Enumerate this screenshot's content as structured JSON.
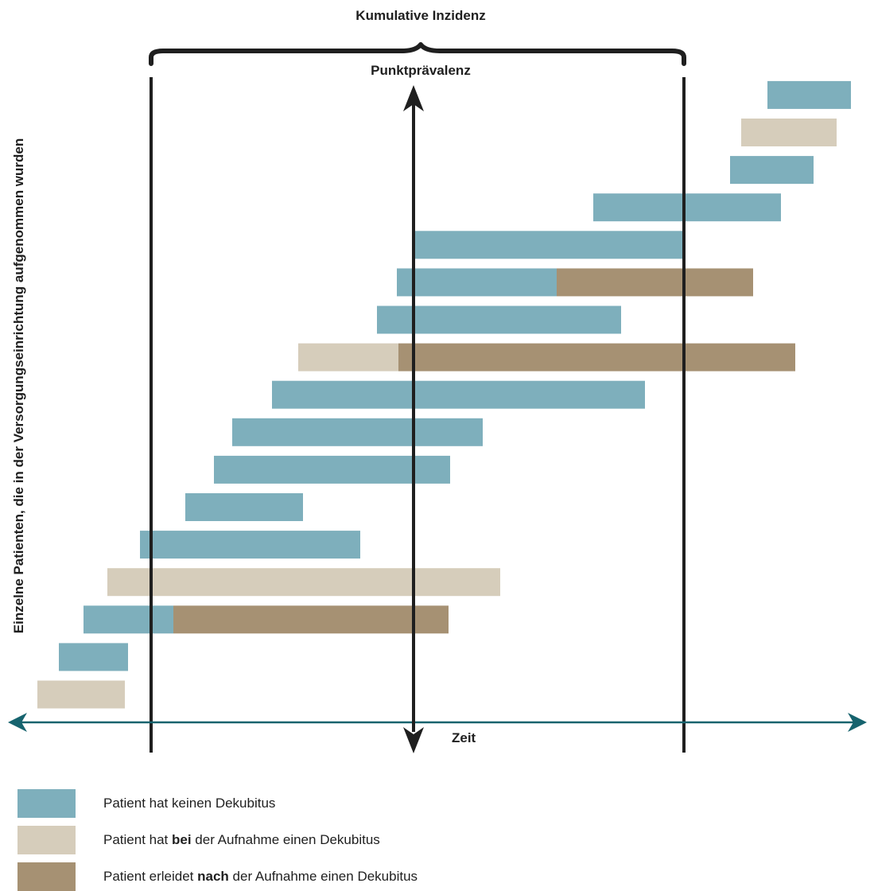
{
  "labels": {
    "cumulative_incidence": "Kumulative Inzidenz",
    "point_prevalence": "Punktprävalenz",
    "time_axis": "Zeit",
    "y_axis": "Einzelne Patienten, die in der Versorgungseinrichtung aufgenommen wurden"
  },
  "colors": {
    "no_ulcer": "#7eafbc",
    "ulcer_at_admission": "#d6cdbb",
    "ulcer_after_admission": "#a69173",
    "line": "#1f1f1f",
    "time_axis": "#16636e"
  },
  "legend": [
    {
      "key": "no_ulcer",
      "pre": "Patient hat keinen Dekubitus",
      "bold": "",
      "post": ""
    },
    {
      "key": "ulcer_at_admission",
      "pre": "Patient hat ",
      "bold": "bei",
      "post": " der Aufnahme einen Dekubitus"
    },
    {
      "key": "ulcer_after_admission",
      "pre": "Patient erleidet ",
      "bold": "nach",
      "post": " der Aufnahme einen Dekubitus"
    }
  ],
  "patients": [
    [
      {
        "state": "ulcer_at_admission",
        "start": 47,
        "end": 157
      }
    ],
    [
      {
        "state": "no_ulcer",
        "start": 74,
        "end": 161
      }
    ],
    [
      {
        "state": "no_ulcer",
        "start": 105,
        "end": 218
      },
      {
        "state": "ulcer_after_admission",
        "start": 218,
        "end": 564
      }
    ],
    [
      {
        "state": "ulcer_at_admission",
        "start": 135,
        "end": 629
      }
    ],
    [
      {
        "state": "no_ulcer",
        "start": 176,
        "end": 453
      }
    ],
    [
      {
        "state": "no_ulcer",
        "start": 233,
        "end": 381
      }
    ],
    [
      {
        "state": "no_ulcer",
        "start": 269,
        "end": 566
      }
    ],
    [
      {
        "state": "no_ulcer",
        "start": 292,
        "end": 607
      }
    ],
    [
      {
        "state": "no_ulcer",
        "start": 342,
        "end": 811
      }
    ],
    [
      {
        "state": "ulcer_at_admission",
        "start": 375,
        "end": 501
      },
      {
        "state": "ulcer_after_admission",
        "start": 501,
        "end": 1000
      }
    ],
    [
      {
        "state": "no_ulcer",
        "start": 474,
        "end": 781
      }
    ],
    [
      {
        "state": "no_ulcer",
        "start": 499,
        "end": 700
      },
      {
        "state": "ulcer_after_admission",
        "start": 700,
        "end": 947
      }
    ],
    [
      {
        "state": "no_ulcer",
        "start": 519,
        "end": 858
      }
    ],
    [
      {
        "state": "no_ulcer",
        "start": 746,
        "end": 982
      }
    ],
    [
      {
        "state": "no_ulcer",
        "start": 918,
        "end": 1023
      }
    ],
    [
      {
        "state": "ulcer_at_admission",
        "start": 932,
        "end": 1052
      }
    ],
    [
      {
        "state": "no_ulcer",
        "start": 965,
        "end": 1070
      }
    ]
  ]
}
